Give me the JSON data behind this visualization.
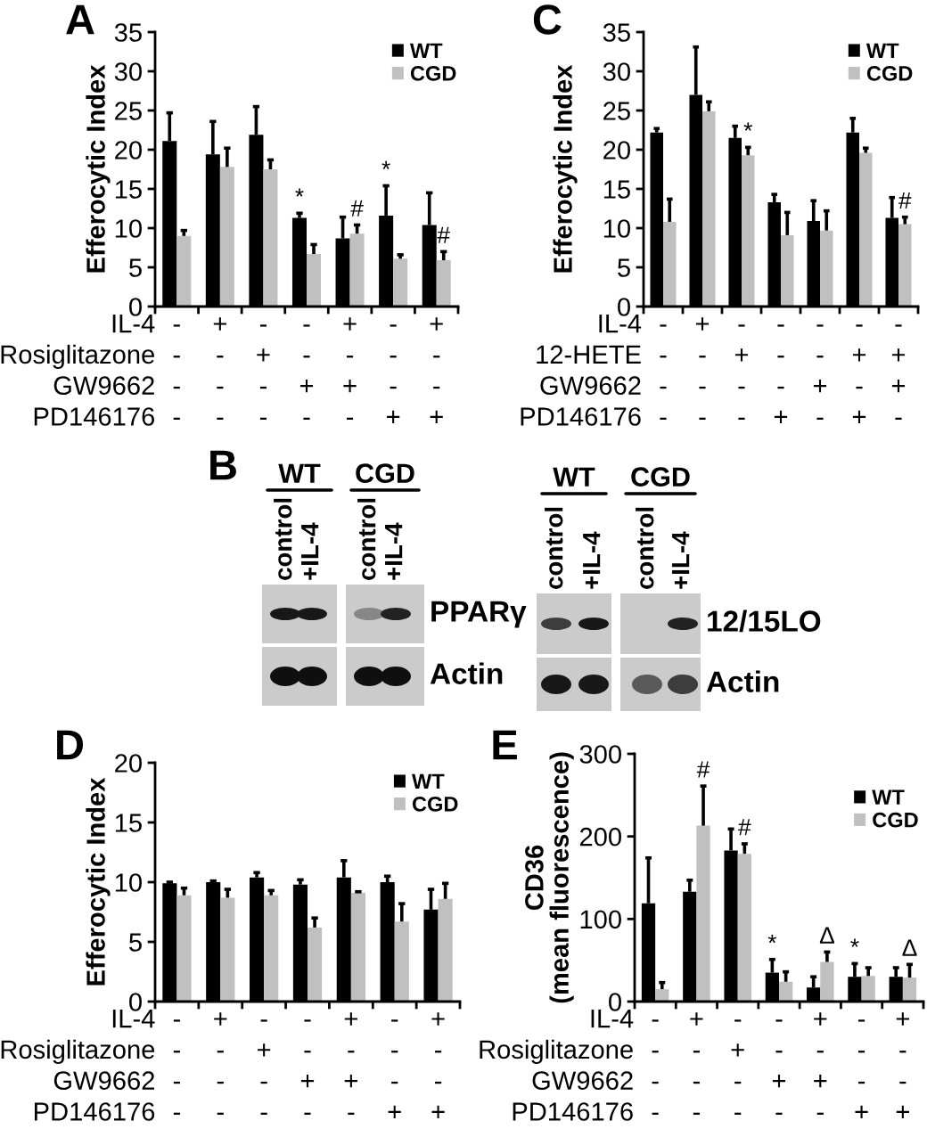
{
  "chart_data": [
    {
      "type": "bar",
      "title": "A",
      "ylabel": "Efferocytic Index",
      "xlabel": "IL-4\nRosiglitazone\nGW9662\nPD146176",
      "categories": [
        "-\n-\n-\n-",
        "+\n-\n-\n-",
        "-\n+\n-\n-",
        "-\n-\n+\n-",
        "+\n-\n+\n-",
        "-\n-\n-\n+",
        "+\n-\n-\n+"
      ],
      "series": [
        {
          "name": "WT",
          "color": "#000000",
          "values": [
            21.1,
            19.4,
            21.9,
            11.3,
            8.7,
            11.6,
            10.4
          ],
          "errors": [
            [
              21.1,
              24.7
            ],
            [
              19.4,
              23.6
            ],
            [
              21.9,
              25.5
            ],
            [
              11.3,
              11.9
            ],
            [
              8.7,
              11.4
            ],
            [
              11.6,
              15.4
            ],
            [
              10.4,
              14.5
            ]
          ],
          "value_labels": [
            null,
            null,
            null,
            "*",
            null,
            "*",
            null
          ]
        },
        {
          "name": "CGD",
          "color": "#c0c0c0",
          "values": [
            9.0,
            17.8,
            17.5,
            6.7,
            9.3,
            6.1,
            5.9
          ],
          "errors": [
            [
              9.0,
              9.7
            ],
            [
              17.8,
              20.2
            ],
            [
              17.5,
              18.7
            ],
            [
              6.7,
              7.9
            ],
            [
              9.3,
              10.4
            ],
            [
              6.1,
              6.6
            ],
            [
              5.9,
              7.0
            ]
          ],
          "value_labels": [
            null,
            null,
            null,
            null,
            "#",
            null,
            "#"
          ]
        }
      ],
      "ylim": [
        0,
        35
      ],
      "yticks": [
        0,
        5,
        10,
        15,
        20,
        25,
        30,
        35
      ],
      "legend": "top right"
    },
    {
      "type": "bar",
      "title": "C",
      "ylabel": "Efferocytic Index",
      "xlabel": "IL-4\n12-HETE\nGW9662\nPD146176",
      "categories": [
        "-\n-\n-\n-",
        "+\n-\n-\n-",
        "-\n+\n-\n-",
        "-\n-\n-\n+",
        "-\n-\n+\n-",
        "-\n+\n-\n+",
        "-\n+\n+\n-"
      ],
      "series": [
        {
          "name": "WT",
          "color": "#000000",
          "values": [
            22.2,
            27.0,
            21.5,
            13.3,
            10.9,
            22.2,
            11.3
          ],
          "errors": [
            [
              22.2,
              22.7
            ],
            [
              27.0,
              33.1
            ],
            [
              21.5,
              23.0
            ],
            [
              13.3,
              14.3
            ],
            [
              10.9,
              13.5
            ],
            [
              22.2,
              24.0
            ],
            [
              11.3,
              13.9
            ]
          ]
        },
        {
          "name": "CGD",
          "color": "#c0c0c0",
          "values": [
            10.8,
            24.9,
            19.3,
            9.1,
            9.7,
            19.6,
            10.5
          ],
          "errors": [
            [
              10.8,
              13.7
            ],
            [
              24.9,
              26.1
            ],
            [
              19.3,
              20.3
            ],
            [
              9.1,
              12.0
            ],
            [
              9.7,
              12.2
            ],
            [
              19.6,
              20.2
            ],
            [
              10.5,
              11.4
            ]
          ],
          "value_labels": [
            null,
            null,
            "*",
            null,
            null,
            null,
            "#"
          ]
        }
      ],
      "ylim": [
        0,
        35
      ],
      "yticks": [
        0,
        5,
        10,
        15,
        20,
        25,
        30,
        35
      ],
      "legend": "top right"
    },
    {
      "type": "other",
      "title": "B",
      "annotations": [
        "WT",
        "CGD",
        "control",
        "+IL-4",
        "control",
        "+IL-4",
        "PPARγ",
        "Actin",
        "WT",
        "CGD",
        "control",
        "+IL-4",
        "control",
        "+IL-4",
        "12/15LO",
        "Actin"
      ]
    },
    {
      "type": "bar",
      "title": "D",
      "ylabel": "Efferocytic Index",
      "xlabel": "IL-4\nRosiglitazone\nGW9662\nPD146176",
      "categories": [
        "-\n-\n-\n-",
        "+\n-\n-\n-",
        "-\n+\n-\n-",
        "-\n-\n+\n-",
        "+\n-\n+\n-",
        "-\n-\n-\n+",
        "+\n-\n-\n+"
      ],
      "series": [
        {
          "name": "WT",
          "color": "#000000",
          "values": [
            9.9,
            10.0,
            10.4,
            9.8,
            10.4,
            10.0,
            7.7
          ],
          "errors": [
            [
              9.9,
              10.0
            ],
            [
              10.0,
              10.1
            ],
            [
              10.4,
              10.8
            ],
            [
              9.8,
              10.2
            ],
            [
              10.4,
              11.8
            ],
            [
              10.0,
              10.5
            ],
            [
              7.7,
              9.4
            ]
          ]
        },
        {
          "name": "CGD",
          "color": "#c0c0c0",
          "values": [
            8.9,
            8.7,
            8.9,
            6.2,
            9.1,
            6.7,
            8.6
          ],
          "errors": [
            [
              8.9,
              9.5
            ],
            [
              8.7,
              9.4
            ],
            [
              8.9,
              9.3
            ],
            [
              6.2,
              7.0
            ],
            [
              9.1,
              9.2
            ],
            [
              6.7,
              8.2
            ],
            [
              8.6,
              9.9
            ]
          ]
        }
      ],
      "ylim": [
        0,
        20
      ],
      "yticks": [
        0,
        5,
        10,
        15,
        20
      ],
      "legend": "top right"
    },
    {
      "type": "bar",
      "title": "E",
      "ylabel": "CD36\n(mean fluorescence)",
      "xlabel": "IL-4\nRosiglitazone\nGW9662\nPD146176",
      "categories": [
        "-\n-\n-\n-",
        "+\n-\n-\n-",
        "-\n+\n-\n-",
        "-\n-\n+\n-",
        "+\n-\n+\n-",
        "-\n-\n-\n+",
        "+\n-\n-\n+"
      ],
      "series": [
        {
          "name": "WT",
          "color": "#000000",
          "values": [
            119,
            133,
            183,
            35,
            17,
            30,
            30
          ],
          "errors": [
            [
              119,
              174
            ],
            [
              133,
              147
            ],
            [
              183,
              209
            ],
            [
              35,
              51
            ],
            [
              17,
              30
            ],
            [
              30,
              46
            ],
            [
              30,
              41
            ]
          ],
          "value_labels": [
            null,
            null,
            null,
            "*",
            null,
            "*",
            null
          ]
        },
        {
          "name": "CGD",
          "color": "#c0c0c0",
          "values": [
            15,
            213,
            179,
            24,
            48,
            31,
            29
          ],
          "errors": [
            [
              15,
              23
            ],
            [
              213,
              261
            ],
            [
              179,
              191
            ],
            [
              24,
              36
            ],
            [
              48,
              60
            ],
            [
              31,
              41
            ],
            [
              29,
              45
            ]
          ],
          "value_labels": [
            null,
            "#",
            "#",
            null,
            "Δ",
            null,
            "Δ"
          ]
        }
      ],
      "ylim": [
        0,
        300
      ],
      "yticks": [
        0,
        100,
        200,
        300
      ],
      "legend": "top right"
    }
  ]
}
